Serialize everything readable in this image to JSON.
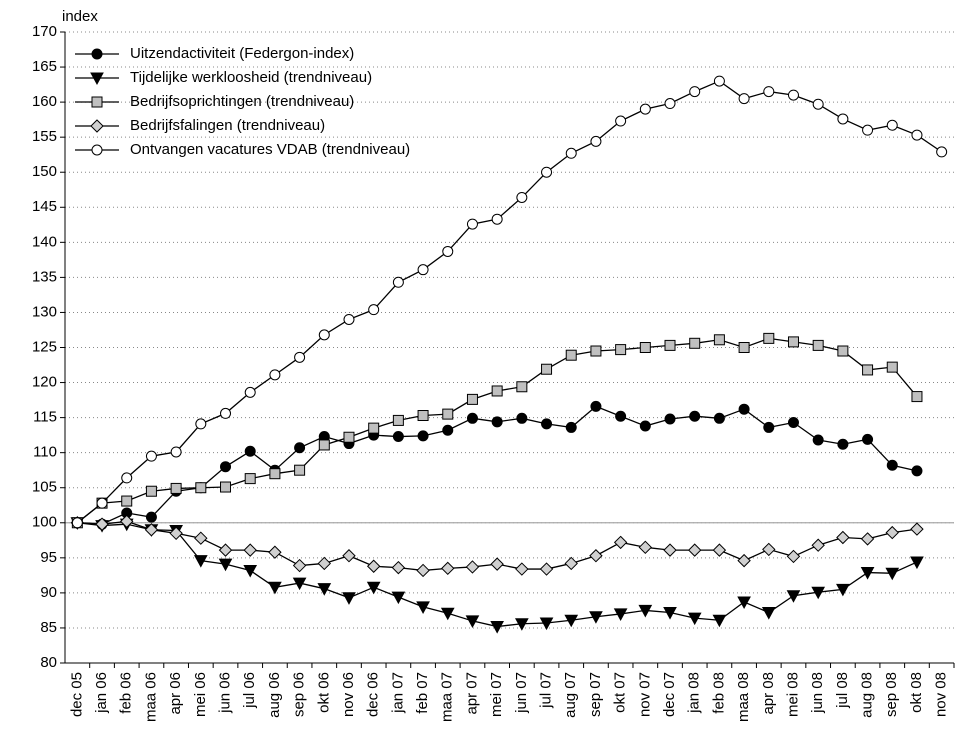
{
  "chart_data": {
    "type": "line",
    "y_label": "index",
    "categories": [
      "dec 05",
      "jan 06",
      "feb 06",
      "maa 06",
      "apr 06",
      "mei 06",
      "jun 06",
      "jul 06",
      "aug 06",
      "sep 06",
      "okt 06",
      "nov 06",
      "dec 06",
      "jan 07",
      "feb 07",
      "maa 07",
      "apr 07",
      "mei 07",
      "jun 07",
      "jul 07",
      "aug 07",
      "sep 07",
      "okt 07",
      "nov 07",
      "dec 07",
      "jan 08",
      "feb 08",
      "maa 08",
      "apr 08",
      "mei 08",
      "jun 08",
      "jul 08",
      "aug 08",
      "sep 08",
      "okt 08",
      "nov 08"
    ],
    "ylim": [
      80,
      170
    ],
    "yticks": [
      80,
      85,
      90,
      95,
      100,
      105,
      110,
      115,
      120,
      125,
      130,
      135,
      140,
      145,
      150,
      155,
      160,
      165,
      170
    ],
    "grid": true,
    "baseline": 100,
    "legend": "top-left",
    "series": [
      {
        "name": "Uitzendactiviteit (Federgon-index)",
        "color": "#000000",
        "marker": "circle",
        "fill": "#000000",
        "values": [
          100,
          99.8,
          101.4,
          100.8,
          104.5,
          105,
          108,
          110.2,
          107.5,
          110.7,
          112.3,
          111.3,
          112.5,
          112.3,
          112.4,
          113.2,
          114.9,
          114.4,
          114.9,
          114.1,
          113.6,
          116.6,
          115.2,
          113.8,
          114.8,
          115.2,
          114.9,
          116.2,
          113.6,
          114.3,
          111.8,
          111.2,
          111.9,
          108.2,
          107.4,
          null
        ]
      },
      {
        "name": "Tijdelijke werkloosheid (trendniveau)",
        "color": "#000000",
        "marker": "triangle-down",
        "fill": "#000000",
        "values": [
          100,
          99.6,
          99.8,
          99.0,
          98.9,
          94.6,
          94.1,
          93.2,
          90.8,
          91.4,
          90.6,
          89.3,
          90.8,
          89.4,
          88.0,
          87.1,
          86.0,
          85.2,
          85.6,
          85.7,
          86.1,
          86.6,
          87.0,
          87.5,
          87.2,
          86.4,
          86.1,
          88.7,
          87.2,
          89.6,
          90.1,
          90.5,
          92.9,
          92.8,
          94.4,
          null
        ]
      },
      {
        "name": "Bedrijfsoprichtingen (trendniveau)",
        "color": "#000000",
        "marker": "square",
        "fill": "#c0c0c0",
        "values": [
          100,
          102.8,
          103.1,
          104.5,
          104.9,
          105.0,
          105.1,
          106.3,
          107.0,
          107.5,
          111.1,
          112.2,
          113.5,
          114.6,
          115.3,
          115.5,
          117.6,
          118.8,
          119.4,
          121.9,
          123.9,
          124.5,
          124.7,
          125.0,
          125.3,
          125.6,
          126.1,
          125.0,
          126.3,
          125.8,
          125.3,
          124.5,
          121.8,
          122.2,
          118.0,
          null
        ]
      },
      {
        "name": "Bedrijfsfalingen (trendniveau)",
        "color": "#000000",
        "marker": "diamond",
        "fill": "#d0d0d0",
        "values": [
          100,
          99.8,
          100.2,
          99.0,
          98.5,
          97.8,
          96.1,
          96.1,
          95.8,
          93.9,
          94.2,
          95.3,
          93.8,
          93.6,
          93.2,
          93.5,
          93.7,
          94.1,
          93.4,
          93.4,
          94.2,
          95.3,
          97.2,
          96.5,
          96.1,
          96.1,
          96.1,
          94.6,
          96.2,
          95.2,
          96.8,
          97.9,
          97.7,
          98.6,
          99.1,
          null
        ]
      },
      {
        "name": "Ontvangen vacatures VDAB (trendniveau)",
        "color": "#000000",
        "marker": "circle",
        "fill": "#ffffff",
        "values": [
          100,
          102.8,
          106.4,
          109.5,
          110.1,
          114.1,
          115.6,
          118.6,
          121.1,
          123.6,
          126.8,
          129.0,
          130.4,
          134.3,
          136.1,
          138.7,
          142.6,
          143.3,
          146.4,
          150.0,
          152.7,
          154.4,
          157.3,
          159.0,
          159.8,
          161.5,
          163.0,
          160.5,
          161.5,
          161.0,
          159.7,
          157.6,
          156.0,
          156.7,
          155.3,
          152.9
        ]
      }
    ]
  }
}
